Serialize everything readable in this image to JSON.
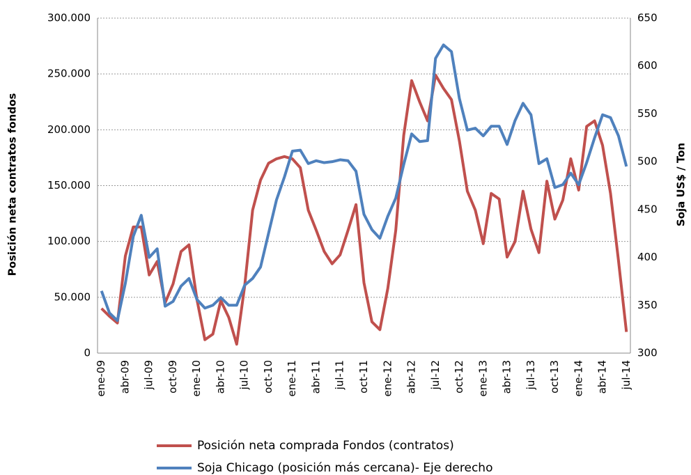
{
  "chart_data": {
    "type": "line",
    "categories": [
      "ene-09",
      null,
      null,
      "abr-09",
      null,
      null,
      "jul-09",
      null,
      null,
      "oct-09",
      null,
      null,
      "ene-10",
      null,
      null,
      "abr-10",
      null,
      null,
      "jul-10",
      null,
      null,
      "oct-10",
      null,
      null,
      "ene-11",
      null,
      null,
      "abr-11",
      null,
      null,
      "jul-11",
      null,
      null,
      "oct-11",
      null,
      null,
      "ene-12",
      null,
      null,
      "abr-12",
      null,
      null,
      "jul-12",
      null,
      null,
      "oct-12",
      null,
      null,
      "ene-13",
      null,
      null,
      "abr-13",
      null,
      null,
      "jul-13",
      null,
      null,
      "oct-13",
      null,
      null,
      "ene-14",
      null,
      null,
      "abr-14",
      null,
      null,
      "jul-14"
    ],
    "series": [
      {
        "name": "Posición neta comprada Fondos (contratos)",
        "color": "#c0504d",
        "values": [
          40000,
          33000,
          27000,
          87000,
          113000,
          113000,
          70000,
          82000,
          45000,
          62000,
          91000,
          97000,
          48000,
          12000,
          17000,
          47000,
          32000,
          8000,
          60000,
          128000,
          155000,
          170000,
          174000,
          176000,
          174000,
          166000,
          128000,
          110000,
          91000,
          80000,
          88000,
          110000,
          133000,
          63000,
          28000,
          21000,
          58000,
          110000,
          195000,
          244000,
          225000,
          208000,
          249000,
          237000,
          227000,
          190000,
          145000,
          128000,
          98000,
          143000,
          138000,
          86000,
          100000,
          145000,
          111000,
          90000,
          154000,
          120000,
          137000,
          174000,
          146000,
          203000,
          208000,
          186000,
          143000,
          83000,
          19000
        ]
      },
      {
        "name": "Soja Chicago (posición más cercana)- Eje derecho",
        "color": "#4f81bd",
        "axis": "y2",
        "values": [
          365,
          342,
          334,
          373,
          422,
          444,
          400,
          409,
          349,
          354,
          370,
          378,
          356,
          347,
          350,
          358,
          350,
          350,
          371,
          378,
          390,
          425,
          460,
          484,
          511,
          512,
          498,
          501,
          499,
          500,
          502,
          501,
          490,
          445,
          429,
          420,
          443,
          462,
          497,
          529,
          521,
          522,
          608,
          622,
          615,
          566,
          533,
          535,
          527,
          537,
          537,
          518,
          543,
          561,
          549,
          498,
          503,
          473,
          476,
          488,
          476,
          499,
          525,
          549,
          546,
          527,
          495
        ]
      }
    ],
    "y_label": "Posición neta contratos fondos",
    "y2_label": "Soja US$ / Ton",
    "ylim": [
      0,
      300000
    ],
    "yticks": [
      0,
      {
        "value": 50000,
        "label": "50.000"
      },
      {
        "value": 100000,
        "label": "100.000"
      },
      {
        "value": 150000,
        "label": "150.000"
      },
      {
        "value": 200000,
        "label": "200.000"
      },
      {
        "value": 250000,
        "label": "250.000"
      },
      {
        "value": 300000,
        "label": "300.000"
      }
    ],
    "y2lim": [
      300,
      650
    ],
    "y2ticks": [
      300,
      350,
      400,
      450,
      500,
      550,
      600,
      650
    ],
    "grid": true
  }
}
